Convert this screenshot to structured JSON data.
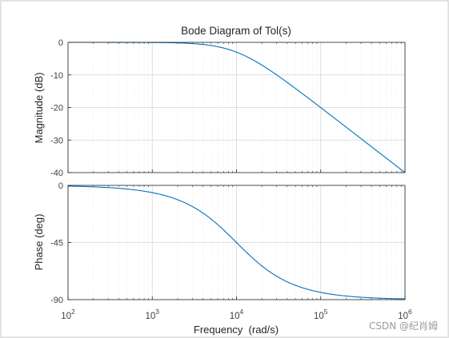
{
  "chart_data": {
    "type": "line",
    "title": "Bode Diagram of Tol(s)",
    "xlabel": "Frequency  (rad/s)",
    "xscale": "log",
    "xlim": [
      100,
      1000000
    ],
    "x_ticks": [
      {
        "base": "10",
        "exp": "2"
      },
      {
        "base": "10",
        "exp": "3"
      },
      {
        "base": "10",
        "exp": "4"
      },
      {
        "base": "10",
        "exp": "5"
      },
      {
        "base": "10",
        "exp": "6"
      }
    ],
    "grid": true,
    "line_color": "#0072bd",
    "panels": [
      {
        "name": "magnitude",
        "ylabel": "Magnitude (dB)",
        "ylim": [
          -40,
          0
        ],
        "yticks": [
          "0",
          "-10",
          "-20",
          "-30",
          "-40"
        ],
        "transfer": {
          "form": "first-order lowpass",
          "corner_frequency": 10000,
          "gain_db": 0
        }
      },
      {
        "name": "phase",
        "ylabel": "Phase (deg)",
        "ylim": [
          -90,
          0
        ],
        "yticks": [
          "0",
          "-45",
          "-90"
        ],
        "transfer": {
          "form": "first-order lowpass",
          "corner_frequency": 10000
        }
      }
    ]
  },
  "watermark": "CSDN @纪肖姆"
}
